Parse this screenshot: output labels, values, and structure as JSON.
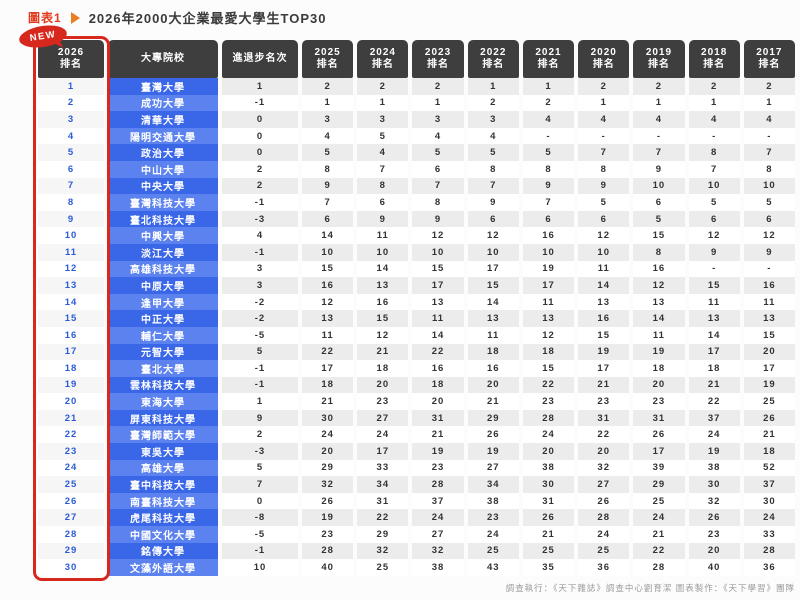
{
  "page": {
    "tag_label": "圖表1",
    "title": "2026年2000大企業最愛大學生TOP30",
    "badge": "NEW",
    "footer": "調查執行：《天下雜誌》調查中心劉育潔 圖表製作：《天下學習》團隊"
  },
  "colors": {
    "accent_red": "#d7281e",
    "tag_red": "#e23b1e",
    "arrow_orange": "#ed7d23",
    "header_bg": "#3e3e3e",
    "univ_blue_dark": "#3a66e8",
    "univ_blue_light": "#5b82ee",
    "rank_link_blue": "#2b5bd7",
    "cell_gray": "#ececec"
  },
  "chart_data": {
    "type": "table",
    "title": "2026年2000大企業最愛大學生TOP30",
    "headers": [
      "2026\n排名",
      "大專院校",
      "進退步名次",
      "2025\n排名",
      "2024\n排名",
      "2023\n排名",
      "2022\n排名",
      "2021\n排名",
      "2020\n排名",
      "2019\n排名",
      "2018\n排名",
      "2017\n排名"
    ],
    "rows": [
      [
        "1",
        "臺灣大學",
        "1",
        "2",
        "2",
        "2",
        "1",
        "1",
        "2",
        "2",
        "2",
        "2"
      ],
      [
        "2",
        "成功大學",
        "-1",
        "1",
        "1",
        "1",
        "2",
        "2",
        "1",
        "1",
        "1",
        "1"
      ],
      [
        "3",
        "清華大學",
        "0",
        "3",
        "3",
        "3",
        "3",
        "4",
        "4",
        "4",
        "4",
        "4"
      ],
      [
        "4",
        "陽明交通大學",
        "0",
        "4",
        "5",
        "4",
        "4",
        "-",
        "-",
        "-",
        "-",
        "-"
      ],
      [
        "5",
        "政治大學",
        "0",
        "5",
        "4",
        "5",
        "5",
        "5",
        "7",
        "7",
        "8",
        "7"
      ],
      [
        "6",
        "中山大學",
        "2",
        "8",
        "7",
        "6",
        "8",
        "8",
        "8",
        "9",
        "7",
        "8"
      ],
      [
        "7",
        "中央大學",
        "2",
        "9",
        "8",
        "7",
        "7",
        "9",
        "9",
        "10",
        "10",
        "10"
      ],
      [
        "8",
        "臺灣科技大學",
        "-1",
        "7",
        "6",
        "8",
        "9",
        "7",
        "5",
        "6",
        "5",
        "5"
      ],
      [
        "9",
        "臺北科技大學",
        "-3",
        "6",
        "9",
        "9",
        "6",
        "6",
        "6",
        "5",
        "6",
        "6"
      ],
      [
        "10",
        "中興大學",
        "4",
        "14",
        "11",
        "12",
        "12",
        "16",
        "12",
        "15",
        "12",
        "12"
      ],
      [
        "11",
        "淡江大學",
        "-1",
        "10",
        "10",
        "10",
        "10",
        "10",
        "10",
        "8",
        "9",
        "9"
      ],
      [
        "12",
        "高雄科技大學",
        "3",
        "15",
        "14",
        "15",
        "17",
        "19",
        "11",
        "16",
        "-",
        "-"
      ],
      [
        "13",
        "中原大學",
        "3",
        "16",
        "13",
        "17",
        "15",
        "17",
        "14",
        "12",
        "15",
        "16"
      ],
      [
        "14",
        "逢甲大學",
        "-2",
        "12",
        "16",
        "13",
        "14",
        "11",
        "13",
        "13",
        "11",
        "11"
      ],
      [
        "15",
        "中正大學",
        "-2",
        "13",
        "15",
        "11",
        "13",
        "13",
        "16",
        "14",
        "13",
        "13"
      ],
      [
        "16",
        "輔仁大學",
        "-5",
        "11",
        "12",
        "14",
        "11",
        "12",
        "15",
        "11",
        "14",
        "15"
      ],
      [
        "17",
        "元智大學",
        "5",
        "22",
        "21",
        "22",
        "18",
        "18",
        "19",
        "19",
        "17",
        "20"
      ],
      [
        "18",
        "臺北大學",
        "-1",
        "17",
        "18",
        "16",
        "16",
        "15",
        "17",
        "18",
        "18",
        "17"
      ],
      [
        "19",
        "雲林科技大學",
        "-1",
        "18",
        "20",
        "18",
        "20",
        "22",
        "21",
        "20",
        "21",
        "19"
      ],
      [
        "20",
        "東海大學",
        "1",
        "21",
        "23",
        "20",
        "21",
        "23",
        "23",
        "23",
        "22",
        "25"
      ],
      [
        "21",
        "屏東科技大學",
        "9",
        "30",
        "27",
        "31",
        "29",
        "28",
        "31",
        "31",
        "37",
        "26"
      ],
      [
        "22",
        "臺灣師範大學",
        "2",
        "24",
        "24",
        "21",
        "26",
        "24",
        "22",
        "26",
        "24",
        "21"
      ],
      [
        "23",
        "東吳大學",
        "-3",
        "20",
        "17",
        "19",
        "19",
        "20",
        "20",
        "17",
        "19",
        "18"
      ],
      [
        "24",
        "高雄大學",
        "5",
        "29",
        "33",
        "23",
        "27",
        "38",
        "32",
        "39",
        "38",
        "52"
      ],
      [
        "25",
        "臺中科技大學",
        "7",
        "32",
        "34",
        "28",
        "34",
        "30",
        "27",
        "29",
        "30",
        "37"
      ],
      [
        "26",
        "南臺科技大學",
        "0",
        "26",
        "31",
        "37",
        "38",
        "31",
        "26",
        "25",
        "32",
        "30"
      ],
      [
        "27",
        "虎尾科技大學",
        "-8",
        "19",
        "22",
        "24",
        "23",
        "26",
        "28",
        "24",
        "26",
        "24"
      ],
      [
        "28",
        "中國文化大學",
        "-5",
        "23",
        "29",
        "27",
        "24",
        "21",
        "24",
        "21",
        "23",
        "33"
      ],
      [
        "29",
        "銘傳大學",
        "-1",
        "28",
        "32",
        "32",
        "25",
        "25",
        "25",
        "22",
        "20",
        "28"
      ],
      [
        "30",
        "文藻外語大學",
        "10",
        "40",
        "25",
        "38",
        "43",
        "35",
        "36",
        "28",
        "40",
        "36"
      ]
    ]
  }
}
